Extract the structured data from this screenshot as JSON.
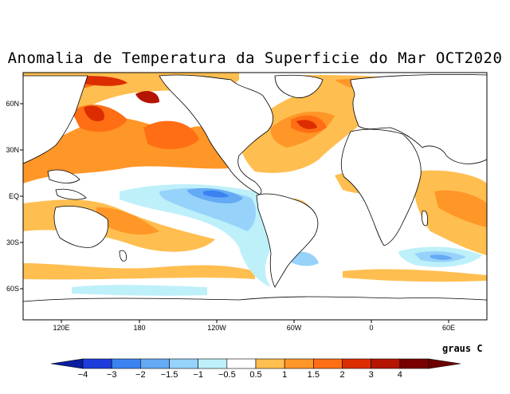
{
  "title": "Anomalia de Temperatura da Superficie do Mar OCT2020",
  "map": {
    "lat_ticks": [
      "60N",
      "30N",
      "EQ",
      "30S",
      "60S"
    ],
    "lon_ticks": [
      "120E",
      "180",
      "120W",
      "60W",
      "0",
      "60E"
    ]
  },
  "colorbar": {
    "units": "graus C",
    "labels": [
      "−4",
      "−3",
      "−2",
      "−1.5",
      "−1",
      "−0.5",
      "0.5",
      "1",
      "1.5",
      "2",
      "3",
      "4"
    ],
    "colors": [
      "#1e3cdc",
      "#3c82f0",
      "#64aaf5",
      "#96d2fa",
      "#bef0fa",
      "#ffffff",
      "#ffbe50",
      "#ff9628",
      "#ff6e14",
      "#dc2d00",
      "#b41400",
      "#780000"
    ],
    "end_low_color": "#0a1ea0",
    "end_high_color": "#6e0000"
  }
}
